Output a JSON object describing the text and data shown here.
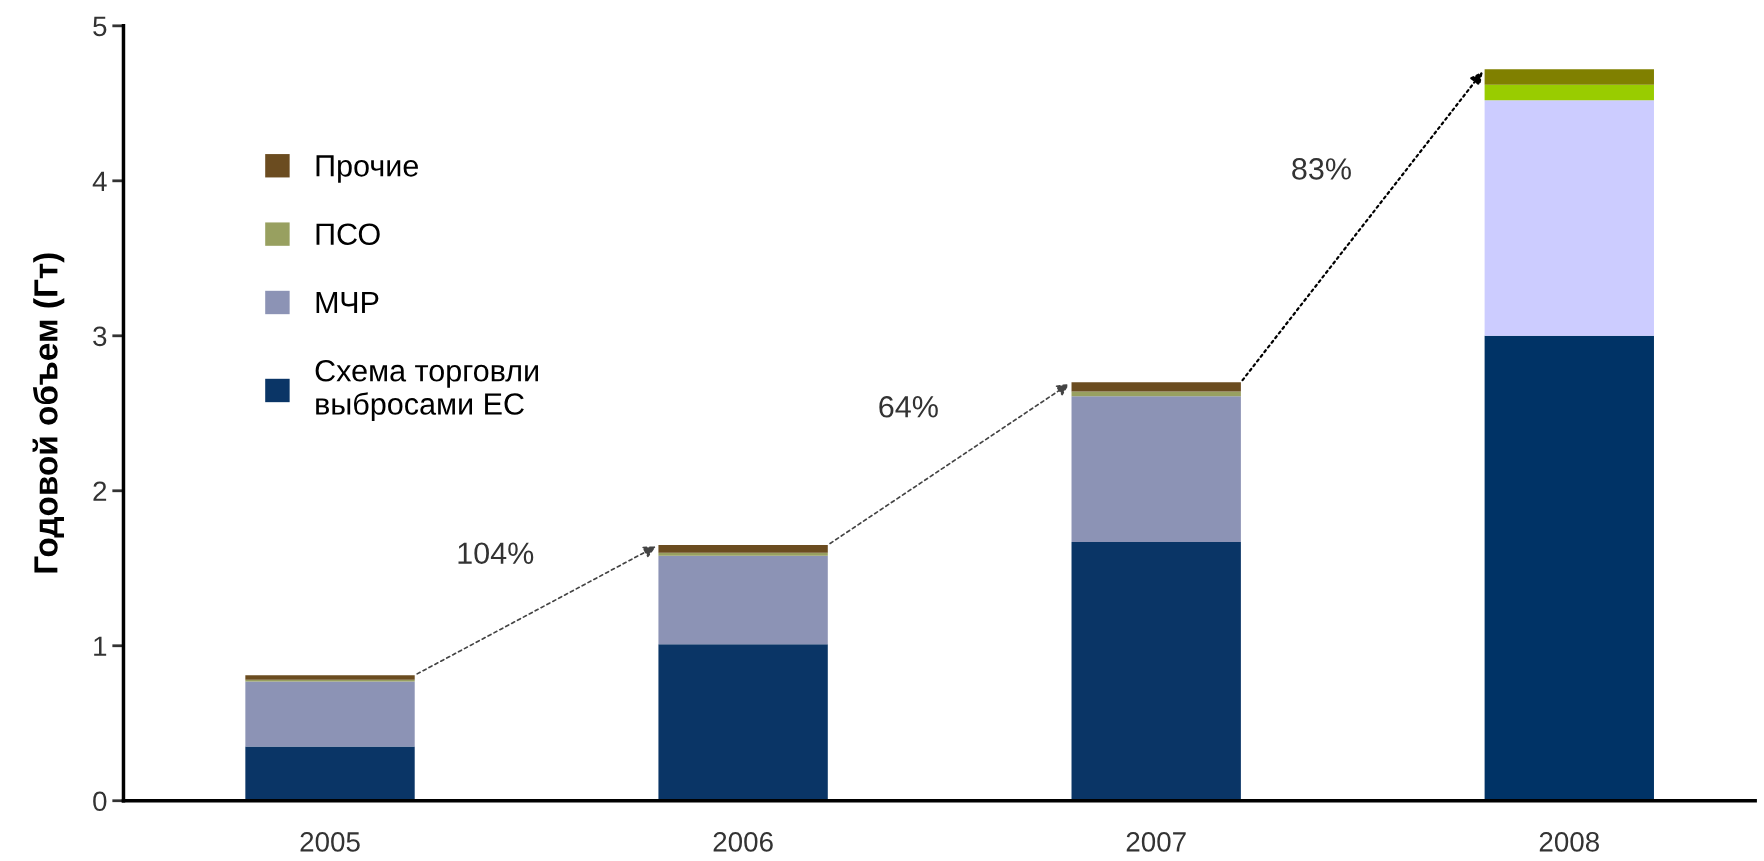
{
  "chart_data": {
    "type": "bar",
    "stacked": true,
    "ylabel": "Годовой объем (Гт)",
    "categories": [
      "2005",
      "2006",
      "2007",
      "2008"
    ],
    "series": [
      {
        "name": "Схема торговли\nвыбросами ЕС",
        "color": "#0a3566",
        "colors": [
          "#0a3566",
          "#0a3566",
          "#0a3566",
          "#003366"
        ],
        "values": [
          0.35,
          1.01,
          1.67,
          3.0
        ]
      },
      {
        "name": "МЧР",
        "color": "#8c93b5",
        "colors": [
          "#8c93b5",
          "#8c93b5",
          "#8c93b5",
          "#ccccff"
        ],
        "values": [
          0.42,
          0.57,
          0.94,
          1.52
        ]
      },
      {
        "name": "ПСО",
        "color": "#98a060",
        "colors": [
          "#98a060",
          "#98a060",
          "#98a060",
          "#99cc00"
        ],
        "values": [
          0.01,
          0.02,
          0.03,
          0.1
        ]
      },
      {
        "name": "Прочие",
        "color": "#6b4c20",
        "colors": [
          "#6b4c20",
          "#6b4c20",
          "#6b4c20",
          "#808000"
        ],
        "values": [
          0.03,
          0.05,
          0.06,
          0.1
        ]
      }
    ],
    "ylim": [
      0,
      5
    ],
    "yticks": [
      0,
      1,
      2,
      3,
      4,
      5
    ],
    "grid": false,
    "legend": "top left",
    "annotations": [
      "104%",
      "64%",
      "83%"
    ]
  }
}
